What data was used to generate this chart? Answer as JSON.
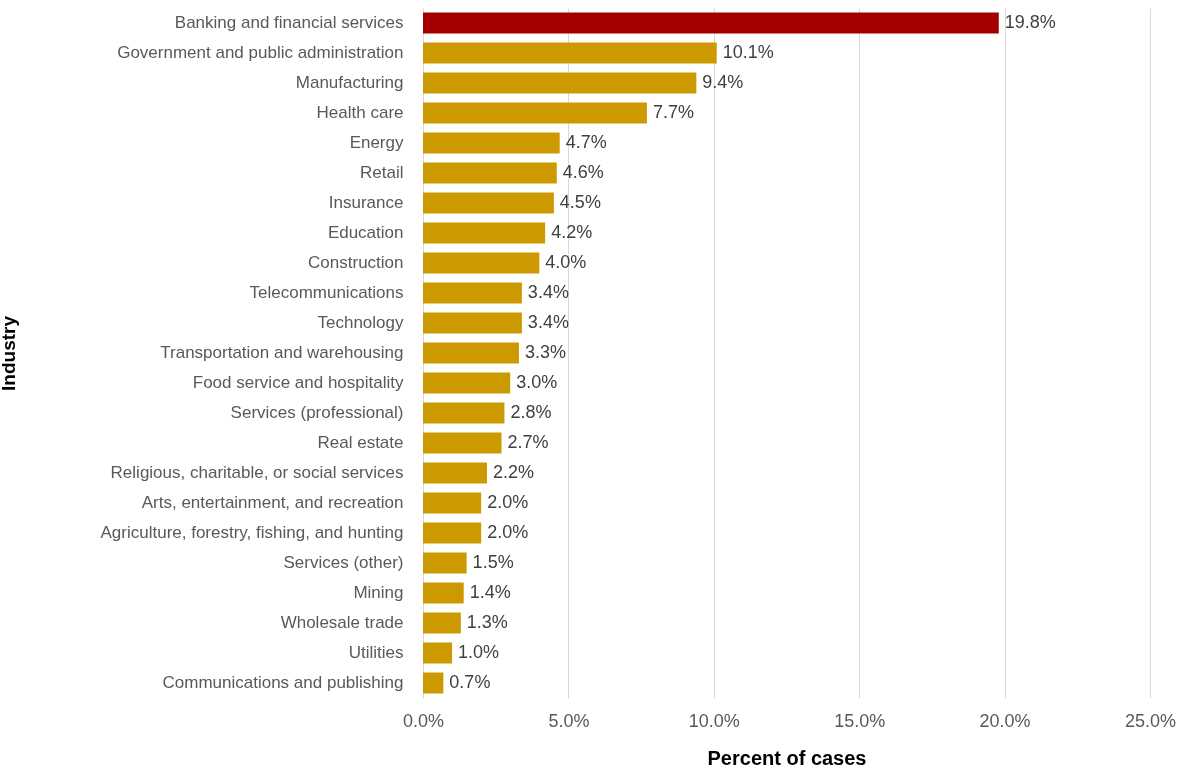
{
  "chart_data": {
    "type": "bar",
    "orientation": "horizontal",
    "xlabel": "Percent of cases",
    "ylabel": "Industry",
    "categories": [
      "Banking and financial services",
      "Government and public administration",
      "Manufacturing",
      "Health care",
      "Energy",
      "Retail",
      "Insurance",
      "Education",
      "Construction",
      "Telecommunications",
      "Technology",
      "Transportation and warehousing",
      "Food service and hospitality",
      "Services (professional)",
      "Real estate",
      "Religious, charitable, or social services",
      "Arts, entertainment, and recreation",
      "Agriculture, forestry, fishing, and hunting",
      "Services (other)",
      "Mining",
      "Wholesale trade",
      "Utilities",
      "Communications and publishing"
    ],
    "values": [
      19.8,
      10.1,
      9.4,
      7.7,
      4.7,
      4.6,
      4.5,
      4.2,
      4.0,
      3.4,
      3.4,
      3.3,
      3.0,
      2.8,
      2.7,
      2.2,
      2.0,
      2.0,
      1.5,
      1.4,
      1.3,
      1.0,
      0.7
    ],
    "value_labels": [
      "19.8%",
      "10.1%",
      "9.4%",
      "7.7%",
      "4.7%",
      "4.6%",
      "4.5%",
      "4.2%",
      "4.0%",
      "3.4%",
      "3.4%",
      "3.3%",
      "3.0%",
      "2.8%",
      "2.7%",
      "2.2%",
      "2.0%",
      "2.0%",
      "1.5%",
      "1.4%",
      "1.3%",
      "1.0%",
      "0.7%"
    ],
    "colors": [
      "#a50000",
      "#cc9900",
      "#cc9900",
      "#cc9900",
      "#cc9900",
      "#cc9900",
      "#cc9900",
      "#cc9900",
      "#cc9900",
      "#cc9900",
      "#cc9900",
      "#cc9900",
      "#cc9900",
      "#cc9900",
      "#cc9900",
      "#cc9900",
      "#cc9900",
      "#cc9900",
      "#cc9900",
      "#cc9900",
      "#cc9900",
      "#cc9900",
      "#cc9900"
    ],
    "xlim": [
      0,
      25
    ],
    "xticks": [
      {
        "value": 0,
        "label": "0.0%"
      },
      {
        "value": 5,
        "label": "5.0%"
      },
      {
        "value": 10,
        "label": "10.0%"
      },
      {
        "value": 15,
        "label": "15.0%"
      },
      {
        "value": 20,
        "label": "20.0%"
      },
      {
        "value": 25,
        "label": "25.0%"
      }
    ],
    "grid": "x"
  }
}
